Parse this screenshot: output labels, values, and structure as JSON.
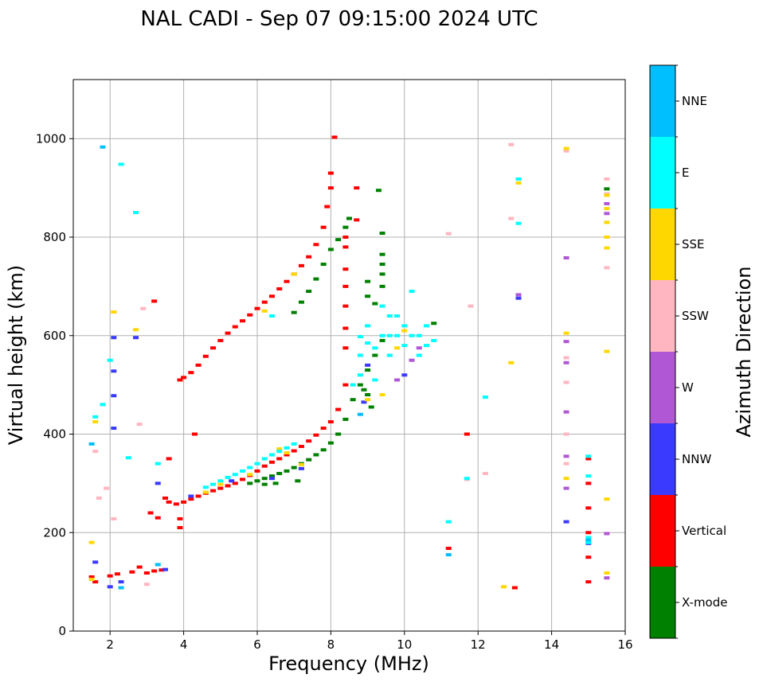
{
  "chart_data": {
    "type": "scatter",
    "title": "NAL CADI - Sep 07 09:15:00 2024 UTC",
    "xlabel": "Frequency (MHz)",
    "ylabel": "Virtual height (km)",
    "xlim": [
      1,
      16
    ],
    "ylim": [
      0,
      1120
    ],
    "xticks": [
      2,
      4,
      6,
      8,
      10,
      12,
      14,
      16
    ],
    "yticks": [
      0,
      200,
      400,
      600,
      800,
      1000
    ],
    "grid": true,
    "colorbar": {
      "label": "Azimuth Direction",
      "position": "right",
      "categories": [
        {
          "name": "X-mode",
          "color": "#008000"
        },
        {
          "name": "Vertical",
          "color": "#ff0000"
        },
        {
          "name": "NNW",
          "color": "#3a3aff"
        },
        {
          "name": "W",
          "color": "#b057d6"
        },
        {
          "name": "SSW",
          "color": "#ffb6c1"
        },
        {
          "name": "SSE",
          "color": "#ffd700"
        },
        {
          "name": "E",
          "color": "#00ffff"
        },
        {
          "name": "NNE",
          "color": "#00bfff"
        }
      ]
    },
    "series": [
      {
        "name": "X-mode",
        "color": "#008000",
        "points": [
          [
            5.8,
            300
          ],
          [
            6.0,
            305
          ],
          [
            6.2,
            310
          ],
          [
            6.4,
            315
          ],
          [
            6.6,
            320
          ],
          [
            6.8,
            325
          ],
          [
            7.0,
            332
          ],
          [
            7.2,
            340
          ],
          [
            7.4,
            348
          ],
          [
            7.6,
            358
          ],
          [
            7.8,
            368
          ],
          [
            8.0,
            382
          ],
          [
            8.2,
            400
          ],
          [
            8.4,
            430
          ],
          [
            8.6,
            470
          ],
          [
            8.8,
            500
          ],
          [
            9.0,
            530
          ],
          [
            9.2,
            560
          ],
          [
            9.4,
            590
          ],
          [
            7.0,
            647
          ],
          [
            7.2,
            668
          ],
          [
            7.4,
            690
          ],
          [
            7.6,
            715
          ],
          [
            7.8,
            745
          ],
          [
            8.0,
            775
          ],
          [
            8.2,
            795
          ],
          [
            8.4,
            820
          ],
          [
            8.5,
            838
          ],
          [
            8.9,
            490
          ],
          [
            9.0,
            480
          ],
          [
            9.1,
            455
          ],
          [
            9.3,
            895
          ],
          [
            9.4,
            808
          ],
          [
            9.4,
            765
          ],
          [
            9.4,
            745
          ],
          [
            9.4,
            725
          ],
          [
            9.4,
            700
          ],
          [
            9.0,
            710
          ],
          [
            9.2,
            665
          ],
          [
            9.0,
            680
          ],
          [
            10.8,
            625
          ],
          [
            15.5,
            898
          ],
          [
            6.5,
            300
          ],
          [
            6.2,
            298
          ],
          [
            7.1,
            305
          ]
        ]
      },
      {
        "name": "Vertical",
        "color": "#ff0000",
        "points": [
          [
            3.5,
            270
          ],
          [
            3.6,
            262
          ],
          [
            3.8,
            258
          ],
          [
            4.0,
            262
          ],
          [
            4.2,
            268
          ],
          [
            4.4,
            274
          ],
          [
            4.6,
            280
          ],
          [
            4.8,
            285
          ],
          [
            5.0,
            290
          ],
          [
            5.2,
            295
          ],
          [
            5.4,
            300
          ],
          [
            5.6,
            308
          ],
          [
            5.8,
            316
          ],
          [
            6.0,
            325
          ],
          [
            6.2,
            335
          ],
          [
            6.4,
            343
          ],
          [
            6.6,
            350
          ],
          [
            6.8,
            358
          ],
          [
            7.0,
            366
          ],
          [
            7.2,
            375
          ],
          [
            7.4,
            386
          ],
          [
            7.6,
            398
          ],
          [
            7.8,
            412
          ],
          [
            8.0,
            425
          ],
          [
            8.2,
            450
          ],
          [
            8.4,
            500
          ],
          [
            8.4,
            575
          ],
          [
            8.4,
            615
          ],
          [
            3.9,
            510
          ],
          [
            4.0,
            515
          ],
          [
            4.2,
            525
          ],
          [
            4.4,
            540
          ],
          [
            4.6,
            558
          ],
          [
            4.8,
            575
          ],
          [
            5.0,
            590
          ],
          [
            5.2,
            605
          ],
          [
            5.4,
            618
          ],
          [
            5.6,
            630
          ],
          [
            5.8,
            642
          ],
          [
            6.0,
            655
          ],
          [
            6.2,
            668
          ],
          [
            6.4,
            680
          ],
          [
            6.6,
            695
          ],
          [
            6.8,
            710
          ],
          [
            7.0,
            725
          ],
          [
            7.2,
            742
          ],
          [
            7.4,
            760
          ],
          [
            7.6,
            785
          ],
          [
            7.8,
            820
          ],
          [
            7.9,
            862
          ],
          [
            8.0,
            900
          ],
          [
            8.0,
            930
          ],
          [
            8.1,
            1003
          ],
          [
            8.7,
            900
          ],
          [
            8.7,
            835
          ],
          [
            8.4,
            800
          ],
          [
            8.4,
            780
          ],
          [
            8.4,
            735
          ],
          [
            8.4,
            700
          ],
          [
            8.4,
            660
          ],
          [
            1.5,
            110
          ],
          [
            1.6,
            100
          ],
          [
            2.0,
            112
          ],
          [
            2.2,
            116
          ],
          [
            2.6,
            120
          ],
          [
            2.8,
            130
          ],
          [
            3.0,
            118
          ],
          [
            3.2,
            122
          ],
          [
            3.4,
            124
          ],
          [
            3.3,
            230
          ],
          [
            3.1,
            240
          ],
          [
            3.9,
            228
          ],
          [
            3.9,
            210
          ],
          [
            11.2,
            168
          ],
          [
            11.7,
            400
          ],
          [
            13.0,
            88
          ],
          [
            15.0,
            200
          ],
          [
            15.0,
            250
          ],
          [
            15.0,
            300
          ],
          [
            15.0,
            350
          ],
          [
            15.0,
            100
          ],
          [
            15.0,
            150
          ],
          [
            3.2,
            670
          ],
          [
            4.3,
            400
          ],
          [
            3.6,
            350
          ]
        ]
      },
      {
        "name": "NNW",
        "color": "#3a3aff",
        "points": [
          [
            1.6,
            140
          ],
          [
            2.0,
            90
          ],
          [
            2.1,
            596
          ],
          [
            2.1,
            528
          ],
          [
            2.1,
            478
          ],
          [
            2.1,
            412
          ],
          [
            2.7,
            596
          ],
          [
            3.3,
            300
          ],
          [
            3.5,
            125
          ],
          [
            2.3,
            100
          ],
          [
            8.9,
            465
          ],
          [
            9.0,
            540
          ],
          [
            10.0,
            520
          ],
          [
            13.1,
            676
          ],
          [
            14.4,
            222
          ],
          [
            15.0,
            178
          ],
          [
            6.4,
            310
          ],
          [
            7.2,
            330
          ],
          [
            5.3,
            305
          ],
          [
            4.2,
            274
          ]
        ]
      },
      {
        "name": "W",
        "color": "#b057d6",
        "points": [
          [
            14.4,
            290
          ],
          [
            14.4,
            355
          ],
          [
            14.4,
            445
          ],
          [
            14.4,
            545
          ],
          [
            14.4,
            588
          ],
          [
            14.4,
            758
          ],
          [
            15.5,
            108
          ],
          [
            15.5,
            198
          ],
          [
            15.5,
            848
          ],
          [
            15.5,
            868
          ],
          [
            13.1,
            683
          ],
          [
            9.8,
            510
          ],
          [
            10.2,
            550
          ],
          [
            10.4,
            575
          ]
        ]
      },
      {
        "name": "SSW",
        "color": "#ffb6c1",
        "points": [
          [
            1.6,
            365
          ],
          [
            1.7,
            270
          ],
          [
            1.9,
            290
          ],
          [
            2.1,
            228
          ],
          [
            2.8,
            420
          ],
          [
            2.9,
            655
          ],
          [
            3.0,
            95
          ],
          [
            11.2,
            807
          ],
          [
            11.8,
            660
          ],
          [
            12.2,
            320
          ],
          [
            12.9,
            838
          ],
          [
            12.9,
            988
          ],
          [
            14.4,
            975
          ],
          [
            14.4,
            555
          ],
          [
            14.4,
            505
          ],
          [
            14.4,
            400
          ],
          [
            14.4,
            340
          ],
          [
            15.5,
            918
          ],
          [
            15.5,
            888
          ],
          [
            15.5,
            800
          ],
          [
            15.5,
            738
          ],
          [
            11.7,
            308
          ]
        ]
      },
      {
        "name": "SSE",
        "color": "#ffd700",
        "points": [
          [
            1.5,
            180
          ],
          [
            1.5,
            105
          ],
          [
            1.6,
            425
          ],
          [
            2.1,
            648
          ],
          [
            2.7,
            612
          ],
          [
            6.6,
            370
          ],
          [
            7.0,
            725
          ],
          [
            7.2,
            338
          ],
          [
            9.0,
            470
          ],
          [
            9.4,
            480
          ],
          [
            9.8,
            575
          ],
          [
            10.0,
            610
          ],
          [
            12.7,
            90
          ],
          [
            12.9,
            545
          ],
          [
            13.1,
            910
          ],
          [
            14.4,
            980
          ],
          [
            14.4,
            605
          ],
          [
            14.4,
            310
          ],
          [
            15.5,
            268
          ],
          [
            15.5,
            118
          ],
          [
            15.5,
            568
          ],
          [
            15.5,
            778
          ],
          [
            15.5,
            800
          ],
          [
            15.5,
            830
          ],
          [
            15.5,
            858
          ],
          [
            15.5,
            885
          ],
          [
            6.2,
            650
          ],
          [
            5.0,
            298
          ],
          [
            4.6,
            282
          ],
          [
            5.8,
            318
          ],
          [
            6.8,
            362
          ]
        ]
      },
      {
        "name": "E",
        "color": "#00ffff",
        "points": [
          [
            1.6,
            435
          ],
          [
            1.8,
            460
          ],
          [
            2.0,
            550
          ],
          [
            2.3,
            948
          ],
          [
            2.5,
            352
          ],
          [
            2.7,
            850
          ],
          [
            3.3,
            340
          ],
          [
            4.6,
            292
          ],
          [
            4.8,
            298
          ],
          [
            5.0,
            305
          ],
          [
            5.2,
            312
          ],
          [
            5.4,
            318
          ],
          [
            5.6,
            325
          ],
          [
            5.8,
            332
          ],
          [
            6.0,
            340
          ],
          [
            6.2,
            350
          ],
          [
            6.4,
            358
          ],
          [
            6.6,
            365
          ],
          [
            6.8,
            372
          ],
          [
            7.0,
            380
          ],
          [
            6.4,
            640
          ],
          [
            8.6,
            500
          ],
          [
            8.8,
            520
          ],
          [
            8.8,
            560
          ],
          [
            8.8,
            598
          ],
          [
            9.0,
            585
          ],
          [
            9.2,
            575
          ],
          [
            9.4,
            600
          ],
          [
            9.4,
            660
          ],
          [
            9.6,
            560
          ],
          [
            9.6,
            600
          ],
          [
            9.6,
            640
          ],
          [
            9.8,
            600
          ],
          [
            9.8,
            640
          ],
          [
            10.0,
            580
          ],
          [
            10.0,
            620
          ],
          [
            10.2,
            600
          ],
          [
            10.2,
            690
          ],
          [
            10.4,
            560
          ],
          [
            10.4,
            600
          ],
          [
            10.6,
            580
          ],
          [
            10.6,
            620
          ],
          [
            10.8,
            590
          ],
          [
            11.2,
            222
          ],
          [
            11.7,
            310
          ],
          [
            12.2,
            475
          ],
          [
            13.1,
            828
          ],
          [
            13.1,
            918
          ],
          [
            15.0,
            180
          ],
          [
            15.0,
            190
          ],
          [
            15.0,
            315
          ],
          [
            15.0,
            355
          ],
          [
            9.0,
            620
          ],
          [
            9.2,
            510
          ]
        ]
      },
      {
        "name": "NNE",
        "color": "#00bfff",
        "points": [
          [
            1.5,
            380
          ],
          [
            1.8,
            983
          ],
          [
            2.3,
            88
          ],
          [
            3.3,
            135
          ],
          [
            8.8,
            440
          ],
          [
            11.2,
            155
          ],
          [
            15.0,
            185
          ]
        ]
      }
    ]
  }
}
